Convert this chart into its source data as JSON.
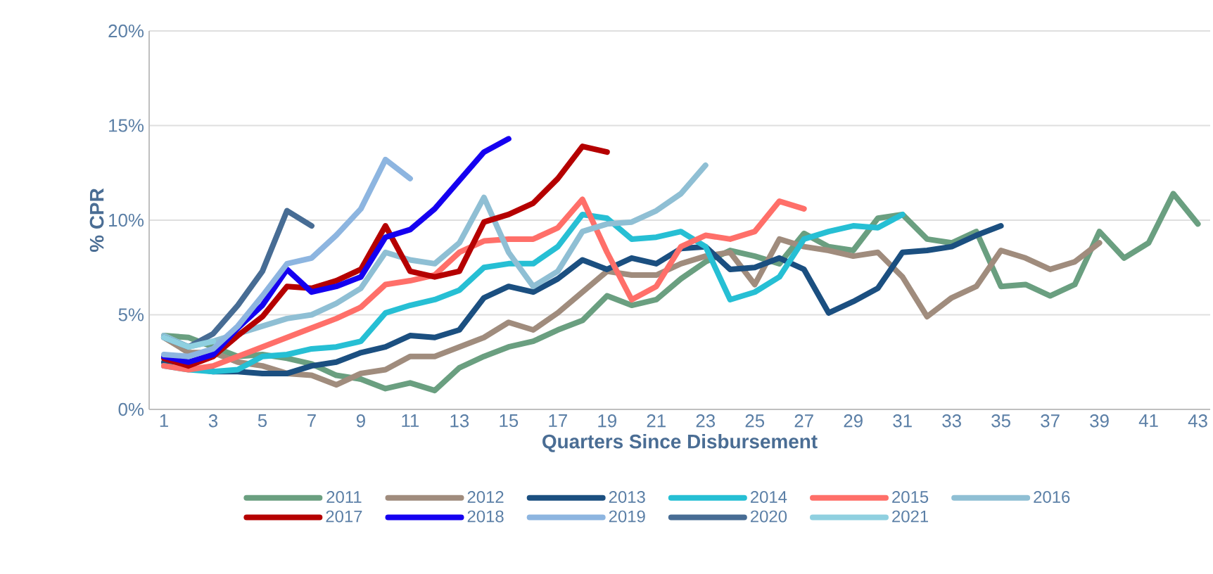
{
  "chart_data": {
    "type": "line",
    "xlabel": "Quarters Since Disbursement",
    "ylabel": "% CPR",
    "x": [
      1,
      2,
      3,
      4,
      5,
      6,
      7,
      8,
      9,
      10,
      11,
      12,
      13,
      14,
      15,
      16,
      17,
      18,
      19,
      20,
      21,
      22,
      23,
      24,
      25,
      26,
      27,
      28,
      29,
      30,
      31,
      32,
      33,
      34,
      35,
      36,
      37,
      38,
      39,
      40,
      41,
      42,
      43
    ],
    "xlim": [
      0.4,
      43.5
    ],
    "xticks": [
      1,
      3,
      5,
      7,
      9,
      11,
      13,
      15,
      17,
      19,
      21,
      23,
      25,
      27,
      29,
      31,
      33,
      35,
      37,
      39,
      41,
      43
    ],
    "ylim": [
      0,
      20
    ],
    "yticks": [
      {
        "value": 0,
        "label": "0%"
      },
      {
        "value": 5,
        "label": "5%"
      },
      {
        "value": 10,
        "label": "10%"
      },
      {
        "value": 15,
        "label": "15%"
      },
      {
        "value": 20,
        "label": "20%"
      }
    ],
    "grid": "y",
    "legend": "bottom",
    "marker": "none",
    "line_style": "solid",
    "series": [
      {
        "name": "2011",
        "color": "#6a9f80",
        "values": [
          3.9,
          3.8,
          3.3,
          2.8,
          2.9,
          2.7,
          2.4,
          1.8,
          1.6,
          1.1,
          1.4,
          1.0,
          2.2,
          2.8,
          3.3,
          3.6,
          4.2,
          4.7,
          6.0,
          5.5,
          5.8,
          6.9,
          7.8,
          8.4,
          8.1,
          7.7,
          9.3,
          8.6,
          8.4,
          10.1,
          10.3,
          9.0,
          8.8,
          9.4,
          6.5,
          6.6,
          6.0,
          6.6,
          9.4,
          8.0,
          8.8,
          11.4,
          9.8
        ]
      },
      {
        "name": "2012",
        "color": "#a08c7d",
        "values": [
          3.8,
          3.0,
          3.0,
          2.5,
          2.3,
          1.9,
          1.8,
          1.3,
          1.9,
          2.1,
          2.8,
          2.8,
          3.3,
          3.8,
          4.6,
          4.2,
          5.1,
          6.2,
          7.3,
          7.1,
          7.1,
          7.7,
          8.1,
          8.3,
          6.6,
          9.0,
          8.6,
          8.4,
          8.1,
          8.3,
          7.0,
          4.9,
          5.9,
          6.5,
          8.4,
          8.0,
          7.4,
          7.8,
          8.8,
          null,
          null,
          null,
          null
        ]
      },
      {
        "name": "2013",
        "color": "#1b4f80",
        "values": [
          2.5,
          2.2,
          2.0,
          2.0,
          1.9,
          1.9,
          2.3,
          2.5,
          3.0,
          3.3,
          3.9,
          3.8,
          4.2,
          5.9,
          6.5,
          6.2,
          6.9,
          7.9,
          7.4,
          8.0,
          7.7,
          8.5,
          8.6,
          7.4,
          7.5,
          8.0,
          7.4,
          5.1,
          5.7,
          6.4,
          8.3,
          8.4,
          8.6,
          9.2,
          9.7,
          null,
          null,
          null,
          null,
          null,
          null,
          null,
          null
        ]
      },
      {
        "name": "2014",
        "color": "#26bfd4",
        "values": [
          2.3,
          2.1,
          2.0,
          2.1,
          2.8,
          2.9,
          3.2,
          3.3,
          3.6,
          5.1,
          5.5,
          5.8,
          6.3,
          7.5,
          7.7,
          7.7,
          8.6,
          10.3,
          10.1,
          9.0,
          9.1,
          9.4,
          8.6,
          5.8,
          6.2,
          7.0,
          9.0,
          9.4,
          9.7,
          9.6,
          10.3,
          null,
          null,
          null,
          null,
          null,
          null,
          null,
          null,
          null,
          null,
          null,
          null
        ]
      },
      {
        "name": "2015",
        "color": "#ff6f69",
        "values": [
          2.3,
          2.1,
          2.3,
          2.8,
          3.3,
          3.8,
          4.3,
          4.8,
          5.4,
          6.6,
          6.8,
          7.1,
          8.3,
          8.9,
          9.0,
          9.0,
          9.6,
          11.1,
          8.3,
          5.8,
          6.5,
          8.6,
          9.2,
          9.0,
          9.4,
          11.0,
          10.6,
          null,
          null,
          null,
          null,
          null,
          null,
          null,
          null,
          null,
          null,
          null,
          null,
          null,
          null,
          null,
          null
        ]
      },
      {
        "name": "2016",
        "color": "#8fbfd4",
        "values": [
          3.9,
          3.3,
          3.6,
          4.0,
          4.4,
          4.8,
          5.0,
          5.6,
          6.4,
          8.3,
          7.9,
          7.7,
          8.8,
          11.2,
          8.3,
          6.5,
          7.3,
          9.4,
          9.8,
          9.9,
          10.5,
          11.4,
          12.9,
          null,
          null,
          null,
          null,
          null,
          null,
          null,
          null,
          null,
          null,
          null,
          null,
          null,
          null,
          null,
          null,
          null,
          null,
          null,
          null
        ]
      },
      {
        "name": "2017",
        "color": "#b50000",
        "values": [
          2.7,
          2.3,
          2.8,
          3.9,
          4.9,
          6.5,
          6.4,
          6.8,
          7.4,
          9.7,
          7.3,
          7.0,
          7.3,
          9.9,
          10.3,
          10.9,
          12.2,
          13.9,
          13.6,
          null,
          null,
          null,
          null,
          null,
          null,
          null,
          null,
          null,
          null,
          null,
          null,
          null,
          null,
          null,
          null,
          null,
          null,
          null,
          null,
          null,
          null,
          null,
          null
        ]
      },
      {
        "name": "2018",
        "color": "#1500f0",
        "values": [
          2.8,
          2.5,
          2.9,
          4.3,
          5.5,
          7.4,
          6.2,
          6.5,
          7.0,
          9.1,
          9.5,
          10.6,
          12.1,
          13.6,
          14.3,
          null,
          null,
          null,
          null,
          null,
          null,
          null,
          null,
          null,
          null,
          null,
          null,
          null,
          null,
          null,
          null,
          null,
          null,
          null,
          null,
          null,
          null,
          null,
          null,
          null,
          null,
          null,
          null
        ]
      },
      {
        "name": "2019",
        "color": "#8db5e0",
        "values": [
          2.9,
          2.8,
          3.2,
          4.4,
          6.0,
          7.7,
          8.0,
          9.2,
          10.6,
          13.2,
          12.2,
          null,
          null,
          null,
          null,
          null,
          null,
          null,
          null,
          null,
          null,
          null,
          null,
          null,
          null,
          null,
          null,
          null,
          null,
          null,
          null,
          null,
          null,
          null,
          null,
          null,
          null,
          null,
          null,
          null,
          null,
          null,
          null
        ]
      },
      {
        "name": "2020",
        "color": "#476c94",
        "values": [
          3.8,
          3.3,
          4.0,
          5.5,
          7.3,
          10.5,
          9.7,
          null,
          null,
          null,
          null,
          null,
          null,
          null,
          null,
          null,
          null,
          null,
          null,
          null,
          null,
          null,
          null,
          null,
          null,
          null,
          null,
          null,
          null,
          null,
          null,
          null,
          null,
          null,
          null,
          null,
          null,
          null,
          null,
          null,
          null,
          null,
          null
        ]
      },
      {
        "name": "2021",
        "color": "#8fd0e0",
        "values": [
          3.8,
          3.3,
          3.6,
          null,
          null,
          null,
          null,
          null,
          null,
          null,
          null,
          null,
          null,
          null,
          null,
          null,
          null,
          null,
          null,
          null,
          null,
          null,
          null,
          null,
          null,
          null,
          null,
          null,
          null,
          null,
          null,
          null,
          null,
          null,
          null,
          null,
          null,
          null,
          null,
          null,
          null,
          null,
          null
        ]
      }
    ]
  }
}
